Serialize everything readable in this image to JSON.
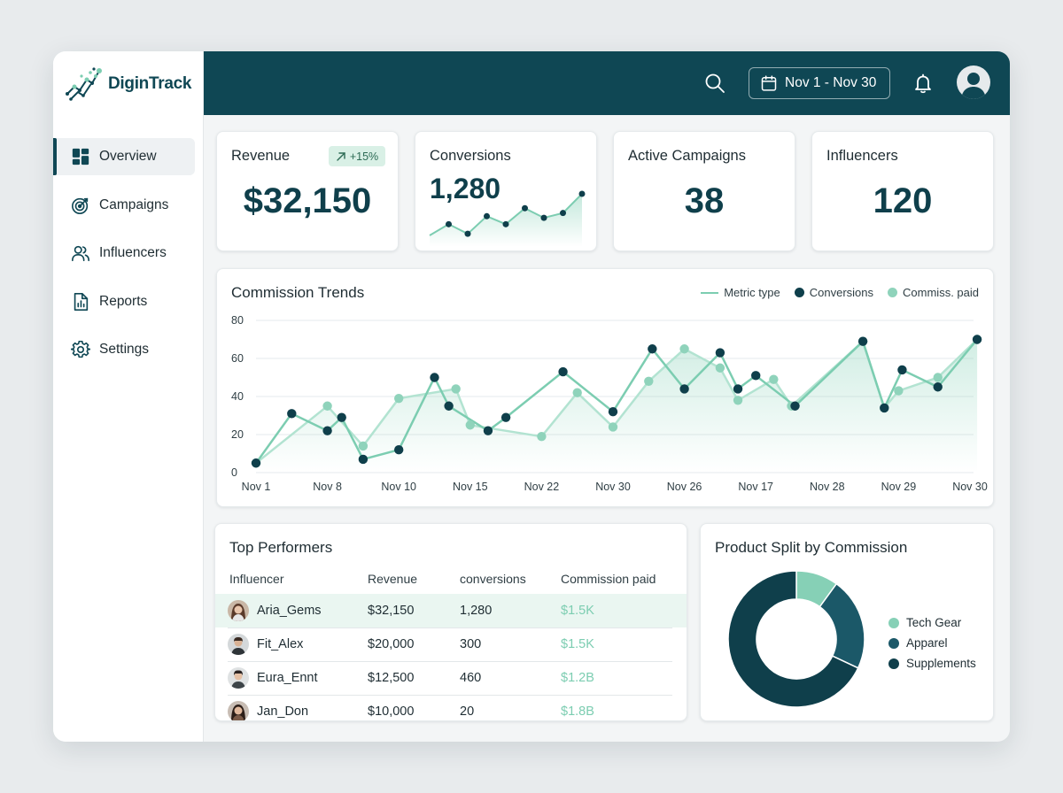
{
  "brand": {
    "name": "DiginTrack"
  },
  "colors": {
    "primary": "#0f4754",
    "accent": "#7ccdb1",
    "dark_point": "#0f3f4b",
    "light_point": "#8fd3bb"
  },
  "sidebar": {
    "items": [
      {
        "label": "Overview",
        "icon": "dashboard-icon",
        "active": true
      },
      {
        "label": "Campaigns",
        "icon": "target-icon",
        "active": false
      },
      {
        "label": "Influencers",
        "icon": "users-icon",
        "active": false
      },
      {
        "label": "Reports",
        "icon": "report-icon",
        "active": false
      },
      {
        "label": "Settings",
        "icon": "gear-icon",
        "active": false
      }
    ]
  },
  "header": {
    "date_range": "Nov 1 - Nov 30"
  },
  "kpis": {
    "revenue": {
      "title": "Revenue",
      "value": "$32,150",
      "badge": "+15%"
    },
    "conversions": {
      "title": "Conversions",
      "value": "1,280",
      "sparkline": [
        5,
        12,
        6,
        17,
        12,
        22,
        16,
        19,
        31
      ]
    },
    "active_campaigns": {
      "title": "Active Campaigns",
      "value": "38"
    },
    "influencers": {
      "title": "Influencers",
      "value": "120"
    }
  },
  "trends": {
    "title": "Commission Trends",
    "legend": {
      "line": "Metric type",
      "dark": "Conversions",
      "light": "Commiss. paid"
    }
  },
  "chart_data": {
    "type": "line",
    "title": "Commission Trends",
    "x": [
      "Nov 1",
      "Nov 8",
      "Nov 10",
      "Nov 15",
      "Nov 22",
      "Nov 30",
      "Nov 26",
      "Nov 17",
      "Nov 28",
      "Nov 29",
      "Nov 30"
    ],
    "ylim": [
      0,
      80
    ],
    "yticks": [
      0,
      20,
      40,
      60,
      80
    ],
    "grid": true,
    "legend_position": "top-right",
    "series": [
      {
        "name": "Conversions",
        "points": [
          [
            0,
            5
          ],
          [
            0.5,
            31
          ],
          [
            1,
            22
          ],
          [
            1.2,
            29
          ],
          [
            1.5,
            7
          ],
          [
            2,
            12
          ],
          [
            2.5,
            50
          ],
          [
            2.7,
            35
          ],
          [
            3.25,
            22
          ],
          [
            3.5,
            29
          ],
          [
            4.3,
            53
          ],
          [
            5,
            32
          ],
          [
            5.55,
            65
          ],
          [
            6,
            44
          ],
          [
            6.5,
            63
          ],
          [
            6.75,
            44
          ],
          [
            7,
            51
          ],
          [
            7.55,
            35
          ],
          [
            8.5,
            69
          ],
          [
            8.8,
            34
          ],
          [
            9.05,
            54
          ],
          [
            9.55,
            45
          ],
          [
            10.1,
            70
          ]
        ]
      },
      {
        "name": "Commiss. paid",
        "points": [
          [
            0,
            5
          ],
          [
            1,
            35
          ],
          [
            1.5,
            14
          ],
          [
            2,
            39
          ],
          [
            2.8,
            44
          ],
          [
            3,
            25
          ],
          [
            4,
            19
          ],
          [
            4.5,
            42
          ],
          [
            5,
            24
          ],
          [
            5.5,
            48
          ],
          [
            6,
            65
          ],
          [
            6.5,
            55
          ],
          [
            6.75,
            38
          ],
          [
            7.25,
            49
          ],
          [
            7.5,
            35
          ],
          [
            8.5,
            69
          ],
          [
            8.8,
            34
          ],
          [
            9,
            43
          ],
          [
            9.55,
            50
          ],
          [
            10.1,
            70
          ]
        ]
      }
    ]
  },
  "top_performers": {
    "title": "Top Performers",
    "columns": [
      "Influencer",
      "Revenue",
      "conversions",
      "Commission paid"
    ],
    "rows": [
      {
        "name": "Aria_Gems",
        "revenue": "$32,150",
        "conversions": "1,280",
        "commission": "$1.5K"
      },
      {
        "name": "Fit_Alex",
        "revenue": "$20,000",
        "conversions": "300",
        "commission": "$1.5K"
      },
      {
        "name": "Eura_Ennt",
        "revenue": "$12,500",
        "conversions": "460",
        "commission": "$1.2B"
      },
      {
        "name": "Jan_Don",
        "revenue": "$10,000",
        "conversions": "20",
        "commission": "$1.8B"
      }
    ]
  },
  "product_split": {
    "title": "Product Split by Commission",
    "slices": [
      {
        "label": "Tech Gear",
        "value": 10,
        "color": "#86d0b6"
      },
      {
        "label": "Apparel",
        "value": 22,
        "color": "#1b5868"
      },
      {
        "label": "Supplements",
        "value": 68,
        "color": "#0f3f4b"
      }
    ],
    "legend": [
      "Tech Gear",
      "Apparel",
      "Supplements"
    ]
  }
}
